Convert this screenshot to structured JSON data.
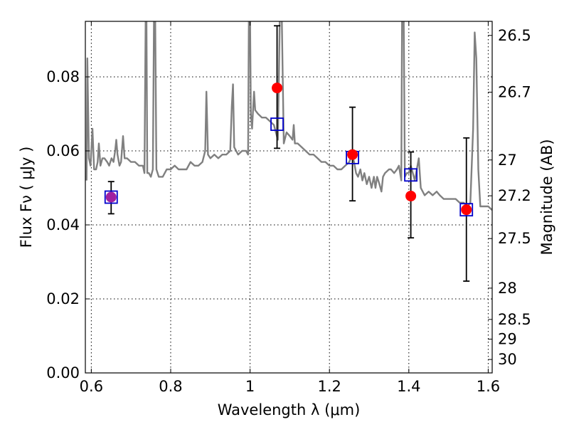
{
  "chart_data": {
    "type": "scatter",
    "title": "",
    "xlabel": "Wavelength  λ (μm)",
    "ylabel": "Flux  Fν  ( μJy )",
    "ylabel_right": "Magnitude (AB)",
    "xlim": [
      0.585,
      1.61
    ],
    "ylim": [
      0.0,
      0.095
    ],
    "grid": true,
    "x_ticks": [
      0.6,
      0.8,
      1.0,
      1.2,
      1.4,
      1.6
    ],
    "x_tick_labels": [
      "0.6",
      "0.8",
      "1",
      "1.2",
      "1.4",
      "1.6"
    ],
    "y_ticks": [
      0.0,
      0.02,
      0.04,
      0.06,
      0.08
    ],
    "y_tick_labels": [
      "0.00",
      "0.02",
      "0.04",
      "0.06",
      "0.08"
    ],
    "y2_ticks": [
      26.5,
      26.7,
      27.0,
      27.2,
      27.5,
      28.0,
      28.5,
      29.0,
      30.0
    ],
    "y2_tick_labels": [
      "26.5",
      "26.7",
      "27",
      "27.2",
      "27.5",
      "28",
      "28.5",
      "29",
      "30"
    ],
    "series": [
      {
        "role": "model_spectrum",
        "color": "#808080",
        "points": [
          [
            0.588,
            0.052
          ],
          [
            0.59,
            0.085
          ],
          [
            0.594,
            0.058
          ],
          [
            0.598,
            0.056
          ],
          [
            0.603,
            0.066
          ],
          [
            0.607,
            0.055
          ],
          [
            0.612,
            0.055
          ],
          [
            0.616,
            0.057
          ],
          [
            0.619,
            0.062
          ],
          [
            0.623,
            0.056
          ],
          [
            0.628,
            0.058
          ],
          [
            0.633,
            0.058
          ],
          [
            0.64,
            0.057
          ],
          [
            0.645,
            0.056
          ],
          [
            0.651,
            0.058
          ],
          [
            0.656,
            0.057
          ],
          [
            0.66,
            0.06
          ],
          [
            0.663,
            0.063
          ],
          [
            0.666,
            0.059
          ],
          [
            0.671,
            0.056
          ],
          [
            0.675,
            0.057
          ],
          [
            0.68,
            0.064
          ],
          [
            0.684,
            0.058
          ],
          [
            0.69,
            0.058
          ],
          [
            0.7,
            0.057
          ],
          [
            0.71,
            0.057
          ],
          [
            0.72,
            0.056
          ],
          [
            0.73,
            0.056
          ],
          [
            0.734,
            0.054
          ],
          [
            0.737,
            0.096
          ],
          [
            0.739,
            0.096
          ],
          [
            0.741,
            0.054
          ],
          [
            0.745,
            0.054
          ],
          [
            0.75,
            0.053
          ],
          [
            0.755,
            0.055
          ],
          [
            0.758,
            0.096
          ],
          [
            0.761,
            0.096
          ],
          [
            0.764,
            0.055
          ],
          [
            0.77,
            0.053
          ],
          [
            0.78,
            0.053
          ],
          [
            0.79,
            0.055
          ],
          [
            0.8,
            0.055
          ],
          [
            0.81,
            0.056
          ],
          [
            0.82,
            0.055
          ],
          [
            0.83,
            0.055
          ],
          [
            0.84,
            0.055
          ],
          [
            0.85,
            0.057
          ],
          [
            0.86,
            0.056
          ],
          [
            0.87,
            0.056
          ],
          [
            0.88,
            0.057
          ],
          [
            0.887,
            0.06
          ],
          [
            0.89,
            0.076
          ],
          [
            0.894,
            0.059
          ],
          [
            0.9,
            0.058
          ],
          [
            0.91,
            0.059
          ],
          [
            0.92,
            0.058
          ],
          [
            0.93,
            0.059
          ],
          [
            0.94,
            0.059
          ],
          [
            0.95,
            0.06
          ],
          [
            0.954,
            0.072
          ],
          [
            0.957,
            0.078
          ],
          [
            0.96,
            0.061
          ],
          [
            0.97,
            0.059
          ],
          [
            0.98,
            0.06
          ],
          [
            0.99,
            0.06
          ],
          [
            0.995,
            0.059
          ],
          [
            0.997,
            0.096
          ],
          [
            1.0,
            0.096
          ],
          [
            1.002,
            0.07
          ],
          [
            1.005,
            0.066
          ],
          [
            1.01,
            0.076
          ],
          [
            1.013,
            0.071
          ],
          [
            1.02,
            0.07
          ],
          [
            1.03,
            0.069
          ],
          [
            1.04,
            0.069
          ],
          [
            1.05,
            0.068
          ],
          [
            1.06,
            0.067
          ],
          [
            1.07,
            0.063
          ],
          [
            1.075,
            0.096
          ],
          [
            1.08,
            0.096
          ],
          [
            1.085,
            0.062
          ],
          [
            1.092,
            0.065
          ],
          [
            1.1,
            0.064
          ],
          [
            1.107,
            0.063
          ],
          [
            1.11,
            0.067
          ],
          [
            1.113,
            0.062
          ],
          [
            1.12,
            0.062
          ],
          [
            1.13,
            0.061
          ],
          [
            1.14,
            0.06
          ],
          [
            1.15,
            0.059
          ],
          [
            1.16,
            0.059
          ],
          [
            1.17,
            0.058
          ],
          [
            1.18,
            0.057
          ],
          [
            1.19,
            0.057
          ],
          [
            1.2,
            0.056
          ],
          [
            1.21,
            0.056
          ],
          [
            1.22,
            0.055
          ],
          [
            1.23,
            0.055
          ],
          [
            1.24,
            0.056
          ],
          [
            1.25,
            0.057
          ],
          [
            1.257,
            0.059
          ],
          [
            1.262,
            0.057
          ],
          [
            1.267,
            0.054
          ],
          [
            1.272,
            0.053
          ],
          [
            1.278,
            0.055
          ],
          [
            1.283,
            0.052
          ],
          [
            1.288,
            0.054
          ],
          [
            1.294,
            0.051
          ],
          [
            1.3,
            0.053
          ],
          [
            1.306,
            0.05
          ],
          [
            1.312,
            0.053
          ],
          [
            1.316,
            0.05
          ],
          [
            1.32,
            0.053
          ],
          [
            1.326,
            0.051
          ],
          [
            1.331,
            0.049
          ],
          [
            1.335,
            0.053
          ],
          [
            1.34,
            0.054
          ],
          [
            1.35,
            0.055
          ],
          [
            1.355,
            0.055
          ],
          [
            1.363,
            0.054
          ],
          [
            1.37,
            0.055
          ],
          [
            1.375,
            0.056
          ],
          [
            1.381,
            0.052
          ],
          [
            1.383,
            0.096
          ],
          [
            1.387,
            0.096
          ],
          [
            1.39,
            0.053
          ],
          [
            1.395,
            0.054
          ],
          [
            1.4,
            0.054
          ],
          [
            1.405,
            0.056
          ],
          [
            1.41,
            0.054
          ],
          [
            1.415,
            0.052
          ],
          [
            1.42,
            0.055
          ],
          [
            1.425,
            0.058
          ],
          [
            1.43,
            0.05
          ],
          [
            1.44,
            0.048
          ],
          [
            1.45,
            0.049
          ],
          [
            1.46,
            0.048
          ],
          [
            1.47,
            0.049
          ],
          [
            1.478,
            0.048
          ],
          [
            1.488,
            0.047
          ],
          [
            1.498,
            0.047
          ],
          [
            1.508,
            0.047
          ],
          [
            1.518,
            0.047
          ],
          [
            1.528,
            0.046
          ],
          [
            1.538,
            0.046
          ],
          [
            1.548,
            0.045
          ],
          [
            1.555,
            0.046
          ],
          [
            1.562,
            0.066
          ],
          [
            1.566,
            0.092
          ],
          [
            1.57,
            0.085
          ],
          [
            1.575,
            0.055
          ],
          [
            1.58,
            0.045
          ],
          [
            1.59,
            0.045
          ],
          [
            1.6,
            0.045
          ],
          [
            1.61,
            0.044
          ]
        ]
      },
      {
        "role": "observed_flux",
        "color": "#ff0000",
        "points": [
          {
            "x": 0.65,
            "y": 0.0475,
            "yerr_low": 0.043,
            "yerr_high": 0.0517
          },
          {
            "x": 1.068,
            "y": 0.077,
            "yerr_low": 0.0607,
            "yerr_high": 0.0938
          },
          {
            "x": 1.258,
            "y": 0.059,
            "yerr_low": 0.0465,
            "yerr_high": 0.0718
          },
          {
            "x": 1.405,
            "y": 0.0478,
            "yerr_low": 0.0365,
            "yerr_high": 0.0597
          },
          {
            "x": 1.545,
            "y": 0.0441,
            "yerr_low": 0.0248,
            "yerr_high": 0.0635
          }
        ]
      },
      {
        "role": "model_band_flux",
        "color": "#0000cc",
        "points": [
          {
            "x": 0.65,
            "y": 0.0475
          },
          {
            "x": 1.068,
            "y": 0.0672
          },
          {
            "x": 1.258,
            "y": 0.0582
          },
          {
            "x": 1.405,
            "y": 0.0535
          },
          {
            "x": 1.545,
            "y": 0.0441
          }
        ]
      }
    ]
  }
}
